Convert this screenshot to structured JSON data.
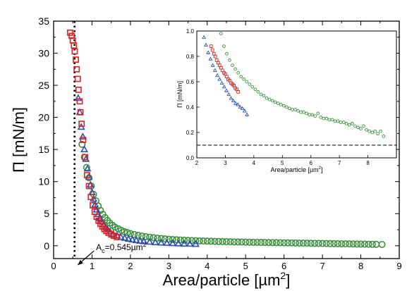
{
  "chart_data": [
    {
      "type": "scatter",
      "xlabel": "Area/particle [µm",
      "xlabel_sup": "2",
      "xlabel_close": "]",
      "ylabel": "Π [mN/m]",
      "xlim": [
        0,
        9
      ],
      "ylim": [
        -2,
        35
      ],
      "xticks": [
        "0",
        "1",
        "2",
        "3",
        "4",
        "5",
        "6",
        "7",
        "8",
        "9"
      ],
      "yticks": [
        "0",
        "5",
        "10",
        "15",
        "20",
        "25",
        "30",
        "35"
      ],
      "grid": false,
      "annotation": {
        "prefix": "A",
        "sub": "c",
        "middle": "=0.545µm",
        "sup": "2",
        "x": 0.545,
        "arrow_from": [
          1.05,
          -0.8
        ],
        "arrow_to": [
          0.63,
          -3.0
        ]
      },
      "vline": {
        "x": 0.545,
        "style": "dotted"
      },
      "series": [
        {
          "marker": "square",
          "color": "#e02020",
          "x": [
            0.43,
            0.47,
            0.5,
            0.53,
            0.55,
            0.58,
            0.6,
            0.63,
            0.65,
            0.68,
            0.7,
            0.73,
            0.77,
            0.82,
            0.87,
            0.92,
            0.97,
            1.02,
            1.07,
            1.12,
            1.17,
            1.22,
            1.27,
            1.32,
            1.37,
            1.43,
            1.5,
            1.57,
            1.65
          ],
          "y": [
            33.2,
            32.7,
            32.0,
            31.2,
            30.3,
            29.0,
            27.5,
            26.0,
            24.3,
            22.5,
            20.8,
            19.0,
            16.5,
            13.8,
            11.0,
            9.3,
            7.6,
            6.3,
            5.3,
            4.5,
            3.9,
            3.4,
            3.0,
            2.6,
            2.3,
            2.0,
            1.75,
            1.55,
            1.35
          ]
        },
        {
          "marker": "triangle",
          "color": "#2a4fb0",
          "x": [
            0.64,
            0.68,
            0.72,
            0.76,
            0.8,
            0.84,
            0.88,
            0.92,
            0.96,
            1.0,
            1.04,
            1.08,
            1.12,
            1.16,
            1.2,
            1.25,
            1.3,
            1.35,
            1.4,
            1.47,
            1.55,
            1.65,
            1.75,
            1.85,
            1.95,
            2.05,
            2.15,
            2.25,
            2.35,
            2.5,
            2.65,
            2.8,
            2.95,
            3.1,
            3.25,
            3.4,
            3.55,
            3.7
          ],
          "y": [
            23.0,
            20.8,
            18.5,
            17.0,
            15.0,
            13.5,
            12.0,
            10.7,
            9.5,
            8.3,
            7.3,
            6.4,
            5.6,
            4.9,
            4.3,
            3.8,
            3.3,
            2.9,
            2.6,
            2.2,
            1.85,
            1.6,
            1.35,
            1.2,
            1.05,
            0.95,
            0.85,
            0.75,
            0.68,
            0.6,
            0.52,
            0.46,
            0.42,
            0.38,
            0.34,
            0.3,
            0.28,
            0.26
          ]
        },
        {
          "marker": "circle",
          "color": "#3a8f3a",
          "x": [
            0.74,
            0.8,
            0.86,
            0.92,
            0.98,
            1.04,
            1.1,
            1.16,
            1.22,
            1.28,
            1.34,
            1.4,
            1.46,
            1.53,
            1.6,
            1.68,
            1.76,
            1.84,
            1.92,
            2.0,
            2.1,
            2.2,
            2.3,
            2.4,
            2.5,
            2.6,
            2.7,
            2.8,
            2.9,
            3.0,
            3.1,
            3.2,
            3.3,
            3.4,
            3.5,
            3.6,
            3.7,
            3.8,
            3.9,
            4.0,
            4.1,
            4.2,
            4.3,
            4.4,
            4.5,
            4.6,
            4.7,
            4.8,
            4.9,
            5.0,
            5.1,
            5.2,
            5.3,
            5.4,
            5.5,
            5.6,
            5.7,
            5.8,
            5.9,
            6.0,
            6.1,
            6.2,
            6.3,
            6.4,
            6.5,
            6.6,
            6.7,
            6.8,
            6.9,
            7.0,
            7.1,
            7.2,
            7.3,
            7.4,
            7.5,
            7.6,
            7.7,
            7.8,
            7.9,
            8.0,
            8.1,
            8.2,
            8.3,
            8.4,
            8.55
          ],
          "y": [
            15.8,
            13.8,
            12.2,
            10.6,
            9.3,
            8.0,
            7.0,
            6.2,
            5.5,
            4.9,
            4.4,
            3.95,
            3.55,
            3.2,
            2.9,
            2.65,
            2.4,
            2.2,
            2.05,
            1.9,
            1.75,
            1.62,
            1.52,
            1.42,
            1.34,
            1.26,
            1.19,
            1.13,
            1.07,
            1.02,
            0.98,
            0.94,
            0.9,
            0.87,
            0.84,
            0.81,
            0.79,
            0.76,
            0.74,
            0.72,
            0.7,
            0.68,
            0.66,
            0.65,
            0.63,
            0.62,
            0.6,
            0.59,
            0.58,
            0.56,
            0.55,
            0.54,
            0.53,
            0.52,
            0.51,
            0.5,
            0.49,
            0.48,
            0.47,
            0.46,
            0.45,
            0.44,
            0.43,
            0.42,
            0.41,
            0.4,
            0.39,
            0.38,
            0.37,
            0.36,
            0.35,
            0.34,
            0.33,
            0.32,
            0.31,
            0.3,
            0.29,
            0.28,
            0.27,
            0.26,
            0.25,
            0.24,
            0.23,
            0.22,
            0.2
          ]
        }
      ]
    },
    {
      "type": "scatter",
      "role": "inset",
      "xlabel": "Area/particle [µm",
      "xlabel_sup": "2",
      "xlabel_close": "]",
      "ylabel": "Π [mN/m]",
      "xlim": [
        2,
        9
      ],
      "ylim": [
        0,
        1.0
      ],
      "xticks": [
        "2",
        "3",
        "4",
        "5",
        "6",
        "7",
        "8"
      ],
      "yticks": [
        "0.0",
        "0.2",
        "0.4",
        "0.6",
        "0.8",
        "1.0"
      ],
      "hline": {
        "y": 0.1,
        "style": "dashed"
      },
      "series": [
        {
          "marker": "triangle",
          "color": "#2a4fb0",
          "x": [
            2.25,
            2.32,
            2.4,
            2.48,
            2.56,
            2.64,
            2.72,
            2.8,
            2.88,
            2.96,
            3.04,
            3.12,
            3.2,
            3.28,
            3.36,
            3.44,
            3.52,
            3.6,
            3.68,
            3.76
          ],
          "y": [
            0.95,
            0.89,
            0.83,
            0.78,
            0.73,
            0.69,
            0.65,
            0.62,
            0.59,
            0.56,
            0.53,
            0.5,
            0.47,
            0.45,
            0.43,
            0.42,
            0.4,
            0.39,
            0.37,
            0.34
          ]
        },
        {
          "marker": "square",
          "color": "#e02020",
          "x": [
            2.5,
            2.55,
            2.6,
            2.65,
            2.7,
            2.75,
            2.8,
            2.85,
            2.9,
            2.95,
            3.0,
            3.05,
            3.1,
            3.15,
            3.2,
            3.25,
            3.3,
            3.35,
            3.4,
            3.45
          ],
          "y": [
            0.88,
            0.85,
            0.82,
            0.8,
            0.77,
            0.75,
            0.73,
            0.71,
            0.69,
            0.67,
            0.66,
            0.64,
            0.62,
            0.61,
            0.59,
            0.58,
            0.57,
            0.55,
            0.54,
            0.52
          ]
        },
        {
          "marker": "circle",
          "color": "#3a8f3a",
          "x": [
            2.85,
            2.95,
            3.05,
            3.15,
            3.25,
            3.35,
            3.45,
            3.55,
            3.65,
            3.75,
            3.85,
            3.95,
            4.05,
            4.15,
            4.25,
            4.35,
            4.45,
            4.55,
            4.65,
            4.75,
            4.85,
            4.95,
            5.05,
            5.15,
            5.25,
            5.35,
            5.45,
            5.55,
            5.65,
            5.75,
            5.85,
            5.95,
            6.05,
            6.15,
            6.25,
            6.35,
            6.45,
            6.55,
            6.65,
            6.75,
            6.85,
            6.95,
            7.05,
            7.15,
            7.25,
            7.35,
            7.45,
            7.55,
            7.65,
            7.75,
            7.85,
            7.95,
            8.05,
            8.15,
            8.25,
            8.35,
            8.45,
            8.55
          ],
          "y": [
            0.98,
            0.88,
            0.82,
            0.77,
            0.73,
            0.7,
            0.67,
            0.64,
            0.62,
            0.6,
            0.58,
            0.56,
            0.54,
            0.52,
            0.5,
            0.49,
            0.47,
            0.46,
            0.45,
            0.44,
            0.43,
            0.42,
            0.41,
            0.4,
            0.39,
            0.38,
            0.38,
            0.37,
            0.36,
            0.36,
            0.35,
            0.34,
            0.34,
            0.33,
            0.35,
            0.32,
            0.31,
            0.31,
            0.3,
            0.3,
            0.29,
            0.29,
            0.28,
            0.28,
            0.27,
            0.26,
            0.27,
            0.25,
            0.24,
            0.23,
            0.25,
            0.22,
            0.21,
            0.2,
            0.21,
            0.19,
            0.21,
            0.17
          ]
        }
      ]
    }
  ]
}
